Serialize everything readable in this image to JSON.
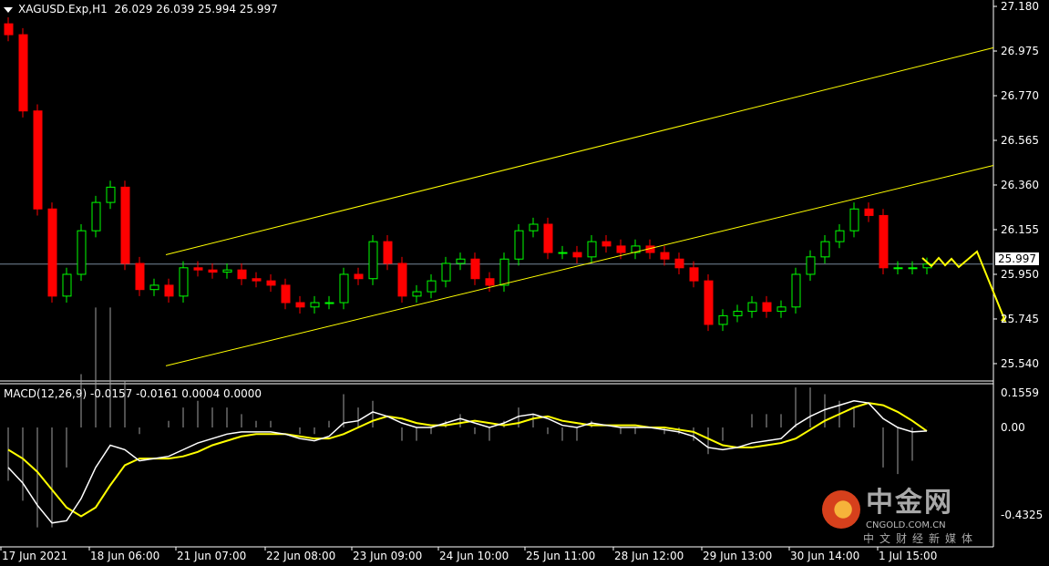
{
  "header": {
    "symbol": "XAGUSD.Exp,H1",
    "ohlc": "26.029 26.039 25.994 25.997"
  },
  "macd_header": {
    "label": "MACD(12,26,9)",
    "values": "-0.0157 -0.0161 0.0004 0.0000"
  },
  "current_price": "25.997",
  "watermark": {
    "cn": "中金网",
    "en": "CNGOLD.COM.CN",
    "sub": "中文财经新媒体"
  },
  "colors": {
    "bull": "#00ff00",
    "bear": "#ff0000",
    "trendline": "#ffff00",
    "macd": "#ffffff",
    "signal": "#ffff00",
    "histogram": "#a0a0a0",
    "price_line": "#778899"
  },
  "chart_data": [
    {
      "type": "candlestick",
      "title": "XAGUSD.Exp,H1",
      "ylim": [
        25.48,
        27.21
      ],
      "y_ticks": [
        "27.180",
        "26.975",
        "26.770",
        "26.565",
        "26.360",
        "26.155",
        "25.950",
        "25.745",
        "25.540"
      ],
      "x_ticks": [
        "17 Jun 2021",
        "18 Jun 06:00",
        "21 Jun 07:00",
        "22 Jun 08:00",
        "23 Jun 09:00",
        "24 Jun 10:00",
        "25 Jun 11:00",
        "28 Jun 12:00",
        "29 Jun 13:00",
        "30 Jun 14:00",
        "1 Jul 15:00"
      ],
      "closes": [
        27.05,
        26.7,
        26.25,
        25.85,
        25.95,
        26.15,
        26.28,
        26.35,
        26.0,
        25.88,
        25.9,
        25.85,
        25.98,
        25.97,
        25.96,
        25.97,
        25.93,
        25.92,
        25.9,
        25.82,
        25.8,
        25.82,
        25.82,
        25.95,
        25.93,
        26.1,
        26.0,
        25.85,
        25.87,
        25.92,
        26.0,
        26.02,
        25.93,
        25.9,
        26.02,
        26.15,
        26.18,
        26.05,
        26.05,
        26.03,
        26.1,
        26.08,
        26.05,
        26.08,
        26.05,
        26.02,
        25.98,
        25.92,
        25.72,
        25.76,
        25.78,
        25.82,
        25.78,
        25.8,
        25.95,
        26.03,
        26.1,
        26.15,
        26.25,
        26.22,
        25.98,
        25.98,
        25.98,
        25.997
      ],
      "trendlines": [
        {
          "from": 26.04,
          "to": 26.99
        },
        {
          "from": 25.53,
          "to": 26.45
        }
      ],
      "last_price": 25.997
    },
    {
      "type": "line",
      "title": "MACD(12,26,9)",
      "ylim": [
        -0.4325,
        0.1559
      ],
      "y_ticks": [
        "0.1559",
        "0.00",
        "-0.4325"
      ],
      "series": [
        {
          "values": [
            -0.18,
            -0.25,
            -0.35,
            -0.43,
            -0.42,
            -0.32,
            -0.18,
            -0.08,
            -0.1,
            -0.15,
            -0.14,
            -0.13,
            -0.1,
            -0.07,
            -0.05,
            -0.03,
            -0.02,
            -0.02,
            -0.02,
            -0.03,
            -0.05,
            -0.06,
            -0.04,
            0.02,
            0.03,
            0.07,
            0.05,
            0.02,
            0.0,
            0.0,
            0.02,
            0.04,
            0.02,
            0.0,
            0.02,
            0.05,
            0.06,
            0.04,
            0.01,
            0.0,
            0.02,
            0.01,
            0.0,
            0.0,
            0.0,
            -0.01,
            -0.02,
            -0.04,
            -0.09,
            -0.1,
            -0.09,
            -0.07,
            -0.06,
            -0.05,
            0.01,
            0.05,
            0.08,
            0.1,
            0.12,
            0.11,
            0.04,
            0.0,
            -0.02,
            -0.0157
          ]
        },
        {
          "values": [
            -0.1,
            -0.14,
            -0.2,
            -0.28,
            -0.36,
            -0.4,
            -0.36,
            -0.26,
            -0.17,
            -0.14,
            -0.14,
            -0.14,
            -0.13,
            -0.11,
            -0.08,
            -0.06,
            -0.04,
            -0.03,
            -0.03,
            -0.03,
            -0.04,
            -0.05,
            -0.05,
            -0.03,
            0.0,
            0.03,
            0.05,
            0.04,
            0.02,
            0.01,
            0.01,
            0.02,
            0.03,
            0.02,
            0.01,
            0.02,
            0.04,
            0.05,
            0.03,
            0.02,
            0.01,
            0.01,
            0.01,
            0.01,
            0.0,
            0.0,
            -0.01,
            -0.02,
            -0.05,
            -0.08,
            -0.09,
            -0.09,
            -0.08,
            -0.07,
            -0.05,
            -0.01,
            0.03,
            0.06,
            0.09,
            0.11,
            0.1,
            0.07,
            0.03,
            -0.0161
          ]
        }
      ]
    }
  ]
}
